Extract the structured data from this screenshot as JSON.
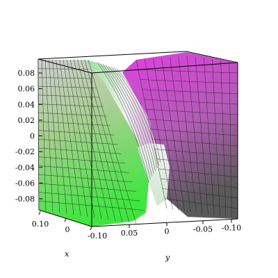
{
  "chart_data": {
    "type": "surface3d",
    "title": "",
    "xlabel": "x",
    "ylabel": "y",
    "zlabel": "",
    "xlim": [
      -0.1,
      0.1
    ],
    "ylim": [
      -0.1,
      0.1
    ],
    "zlim": [
      -0.09,
      0.09
    ],
    "z_ticks": [
      "0.08",
      "0.06",
      "0.04",
      "0.02",
      "0",
      "-0.02",
      "-0.04",
      "-0.06",
      "-0.08"
    ],
    "x_ticks": [
      "0.10",
      "0",
      "-0.10"
    ],
    "y_ticks": [
      "0.05",
      "0",
      "-0.05",
      "-0.10"
    ],
    "grid": true,
    "colors": {
      "low": "#3fe63f",
      "mid": "#e0e0e0",
      "high": "#e040e0",
      "mesh": "#000000",
      "box": "#000000"
    }
  }
}
